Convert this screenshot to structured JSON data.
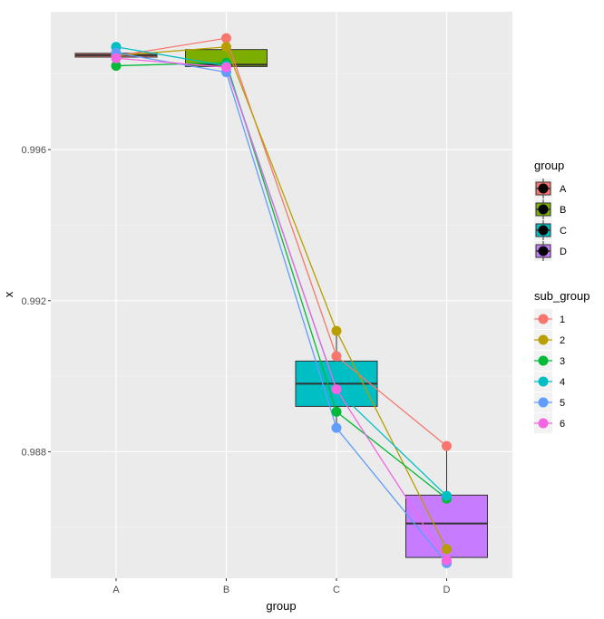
{
  "chart_data": {
    "type": "boxplot",
    "xlabel": "group",
    "ylabel": "x",
    "ylim": [
      0.98465,
      0.99965
    ],
    "y_ticks": [
      0.988,
      0.992,
      0.996
    ],
    "y_tick_labels": [
      "0.988",
      "0.992",
      "0.996"
    ],
    "grid": true,
    "categories": [
      "A",
      "B",
      "C",
      "D"
    ],
    "boxes": [
      {
        "group": "A",
        "q1": 0.99845,
        "median": 0.9985,
        "q3": 0.99855,
        "whisker_low": 0.99845,
        "whisker_high": 0.99855,
        "color": "#F8766D"
      },
      {
        "group": "B",
        "q1": 0.9982,
        "median": 0.99825,
        "q3": 0.99865,
        "whisker_low": 0.99815,
        "whisker_high": 0.9989,
        "color": "#7CAE00"
      },
      {
        "group": "C",
        "q1": 0.9892,
        "median": 0.9898,
        "q3": 0.9904,
        "whisker_low": 0.98865,
        "whisker_high": 0.9912,
        "color": "#00BFC4"
      },
      {
        "group": "D",
        "q1": 0.9852,
        "median": 0.9861,
        "q3": 0.98685,
        "whisker_low": 0.985,
        "whisker_high": 0.98815,
        "color": "#C77CFF"
      }
    ],
    "series": [
      {
        "name": "1",
        "color": "#F8766D",
        "values": [
          0.99848,
          0.99895,
          0.99053,
          0.98815
        ]
      },
      {
        "name": "2",
        "color": "#B79F00",
        "values": [
          0.99849,
          0.99872,
          0.9912,
          0.98542
        ]
      },
      {
        "name": "3",
        "color": "#00BA38",
        "values": [
          0.99822,
          0.9983,
          0.98906,
          0.98676
        ]
      },
      {
        "name": "4",
        "color": "#00BFC4",
        "values": [
          0.99872,
          0.99822,
          0.98963,
          0.98683
        ]
      },
      {
        "name": "5",
        "color": "#619CFF",
        "values": [
          0.99856,
          0.99805,
          0.98863,
          0.98505
        ]
      },
      {
        "name": "6",
        "color": "#F564E3",
        "values": [
          0.99842,
          0.99818,
          0.98965,
          0.98512
        ]
      }
    ],
    "legends": [
      {
        "title": "group",
        "items": [
          "A",
          "B",
          "C",
          "D"
        ]
      },
      {
        "title": "sub_group",
        "items": [
          "1",
          "2",
          "3",
          "4",
          "5",
          "6"
        ]
      }
    ],
    "legend_position": "right",
    "panel_background": "#EBEBEB",
    "gridline_color": "#FFFFFF"
  }
}
